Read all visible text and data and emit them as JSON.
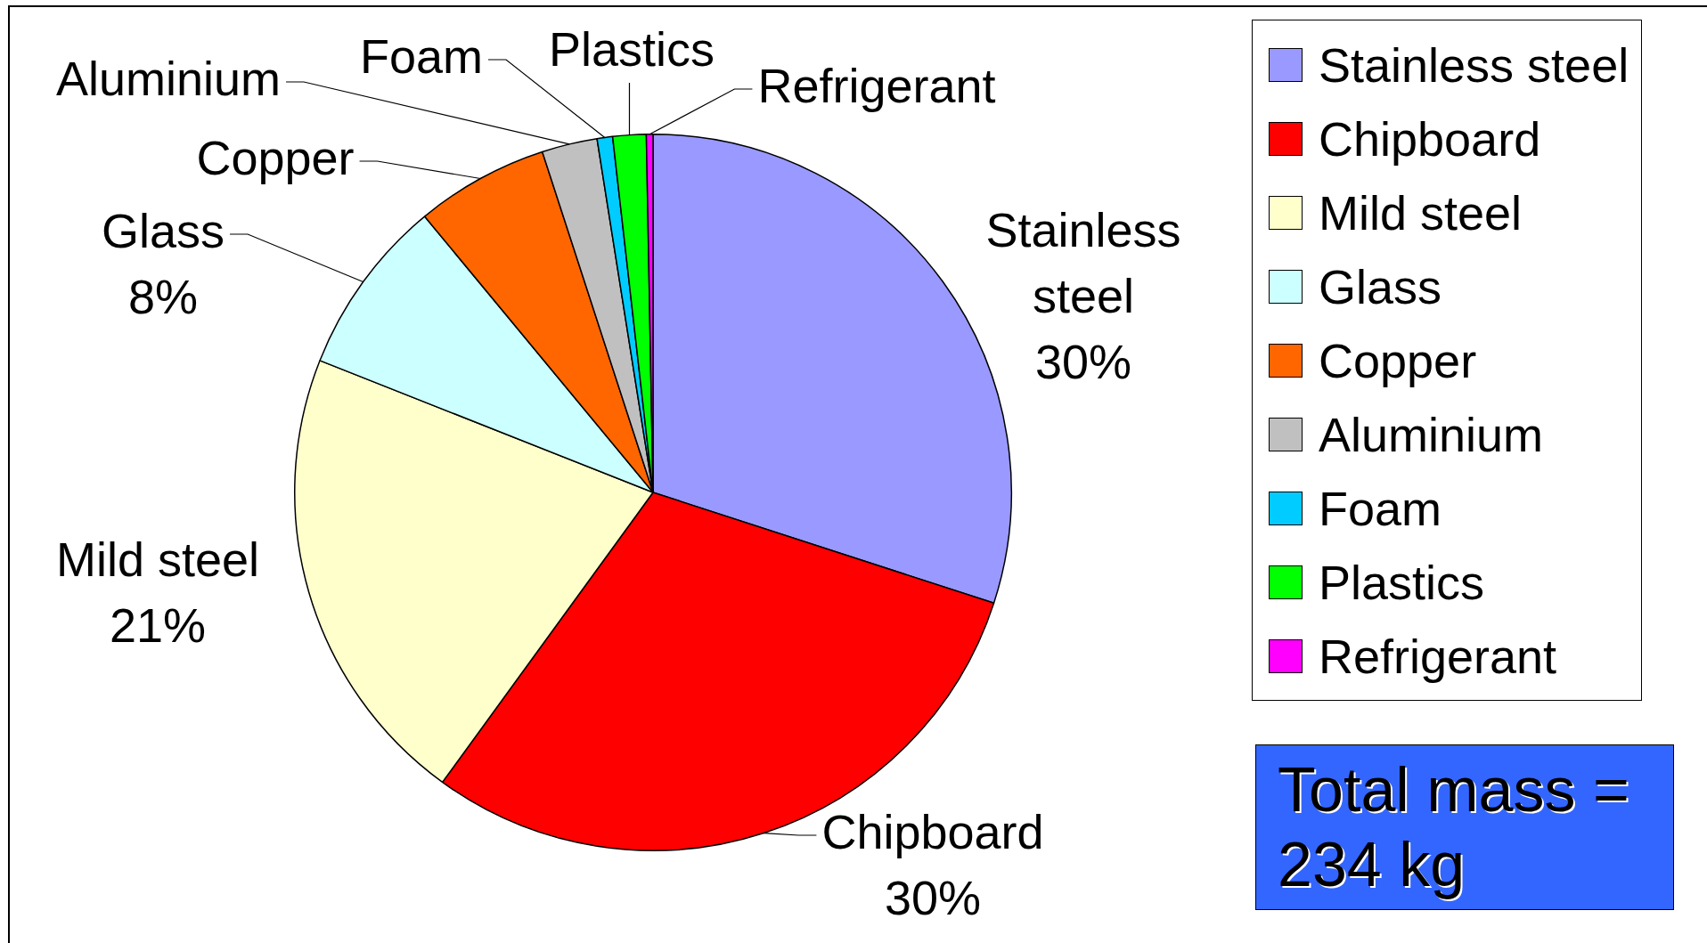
{
  "chart_data": {
    "type": "pie",
    "categories": [
      "Stainless steel",
      "Chipboard",
      "Mild steel",
      "Glass",
      "Copper",
      "Aluminium",
      "Foam",
      "Plastics",
      "Refrigerant"
    ],
    "values": [
      30,
      30,
      21,
      8,
      6,
      2.5,
      0.7,
      1.5,
      0.3
    ],
    "colors": [
      "#9999ff",
      "#ff0000",
      "#ffffcc",
      "#ccffff",
      "#ff6600",
      "#c0c0c0",
      "#00ccff",
      "#00ff00",
      "#ff00ff"
    ],
    "value_labels": [
      "30%",
      "30%",
      "21%",
      "8%",
      null,
      null,
      null,
      null,
      null
    ],
    "legend": "right",
    "annotations": [
      "Total mass = 234 kg"
    ]
  }
}
